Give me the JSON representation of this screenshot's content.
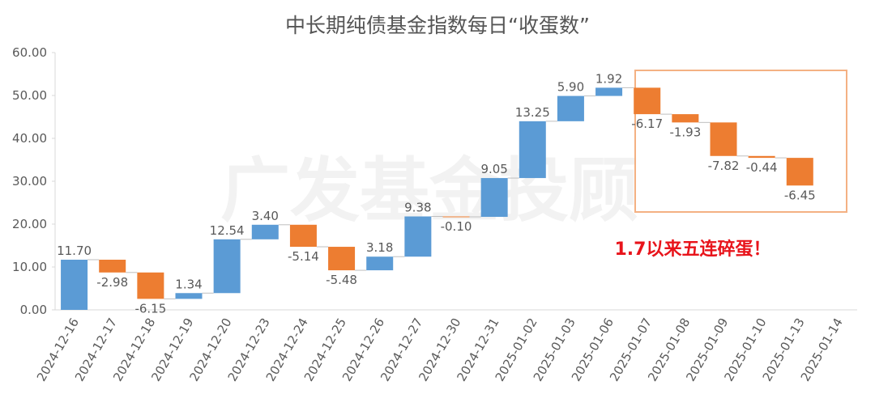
{
  "chart_data": {
    "type": "waterfall",
    "title": "中长期纯债基金指数每日“收蛋数”",
    "categories": [
      "2024-12-16",
      "2024-12-17",
      "2024-12-18",
      "2024-12-19",
      "2024-12-20",
      "2024-12-23",
      "2024-12-24",
      "2024-12-25",
      "2024-12-26",
      "2024-12-27",
      "2024-12-30",
      "2024-12-31",
      "2025-01-02",
      "2025-01-03",
      "2025-01-06",
      "2025-01-07",
      "2025-01-08",
      "2025-01-09",
      "2025-01-10",
      "2025-01-13",
      "2025-01-14"
    ],
    "values": [
      11.7,
      -2.98,
      -6.15,
      1.34,
      12.54,
      3.4,
      -5.14,
      -5.48,
      3.18,
      9.38,
      -0.1,
      9.05,
      13.25,
      5.9,
      1.92,
      -6.17,
      -1.93,
      -7.82,
      -0.44,
      -6.45,
      null
    ],
    "value_labels": [
      "11.70",
      "-2.98",
      "-6.15",
      "1.34",
      "12.54",
      "3.40",
      "-5.14",
      "-5.48",
      "3.18",
      "9.38",
      "-0.10",
      "9.05",
      "13.25",
      "5.90",
      "1.92",
      "-6.17",
      "-1.93",
      "-7.82",
      "-0.44",
      "-6.45",
      null
    ],
    "increase_color": "#5b9bd5",
    "decrease_color": "#ed7d31",
    "ylim": [
      0,
      60
    ],
    "yticks": [
      {
        "value": 0,
        "label": "0.00"
      },
      {
        "value": 10,
        "label": "10.00"
      },
      {
        "value": 20,
        "label": "20.00"
      },
      {
        "value": 30,
        "label": "30.00"
      },
      {
        "value": 40,
        "label": "40.00"
      },
      {
        "value": 50,
        "label": "50.00"
      },
      {
        "value": 60,
        "label": "60.00"
      }
    ],
    "grid": false,
    "annotation": "1.7以来五连碎蛋！",
    "watermark": "广发基金投顾"
  }
}
